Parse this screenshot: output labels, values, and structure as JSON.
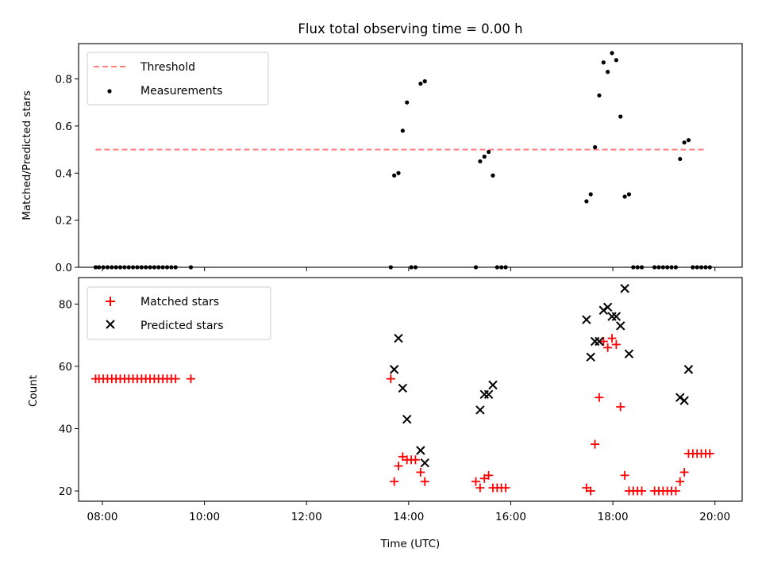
{
  "figure_title": "Flux total observing time = 0.00 h",
  "colors": {
    "threshold": "#ff7f7f",
    "measurements": "#000000",
    "matched": "#ff0000",
    "predicted": "#000000"
  },
  "chart_data": [
    {
      "type": "scatter",
      "title": "Flux total observing time = 0.00 h",
      "xlabel": "",
      "ylabel": "Matched/Predicted stars",
      "xlim": [
        "07:32",
        "20:32"
      ],
      "ylim": [
        0,
        0.95
      ],
      "x_ticks": [],
      "y_ticks": [
        "0.0",
        "0.2",
        "0.4",
        "0.6",
        "0.8"
      ],
      "y_tick_values": [
        0,
        0.2,
        0.4,
        0.6,
        0.8
      ],
      "grid": false,
      "legend_position": "top-left",
      "legend": [
        "Threshold",
        "Measurements"
      ],
      "series": [
        {
          "name": "Threshold",
          "style": "dashed-line",
          "points": [
            [
              "07:52",
              0.5
            ],
            [
              "19:50",
              0.5
            ]
          ]
        },
        {
          "name": "Measurements",
          "style": "dot",
          "points": [
            [
              "07:52",
              0.0
            ],
            [
              "07:56",
              0.0
            ],
            [
              "08:01",
              0.0
            ],
            [
              "08:06",
              0.0
            ],
            [
              "08:11",
              0.0
            ],
            [
              "08:16",
              0.0
            ],
            [
              "08:21",
              0.0
            ],
            [
              "08:26",
              0.0
            ],
            [
              "08:31",
              0.0
            ],
            [
              "08:36",
              0.0
            ],
            [
              "08:41",
              0.0
            ],
            [
              "08:46",
              0.0
            ],
            [
              "08:51",
              0.0
            ],
            [
              "08:56",
              0.0
            ],
            [
              "09:01",
              0.0
            ],
            [
              "09:06",
              0.0
            ],
            [
              "09:11",
              0.0
            ],
            [
              "09:16",
              0.0
            ],
            [
              "09:21",
              0.0
            ],
            [
              "09:26",
              0.0
            ],
            [
              "09:44",
              0.0
            ],
            [
              "13:39",
              0.0
            ],
            [
              "13:43",
              0.39
            ],
            [
              "13:48",
              0.4
            ],
            [
              "13:53",
              0.58
            ],
            [
              "13:58",
              0.7
            ],
            [
              "14:03",
              0.0
            ],
            [
              "14:08",
              0.0
            ],
            [
              "14:14",
              0.78
            ],
            [
              "14:19",
              0.79
            ],
            [
              "15:19",
              0.0
            ],
            [
              "15:24",
              0.45
            ],
            [
              "15:29",
              0.47
            ],
            [
              "15:34",
              0.49
            ],
            [
              "15:39",
              0.39
            ],
            [
              "15:44",
              0.0
            ],
            [
              "15:49",
              0.0
            ],
            [
              "15:54",
              0.0
            ],
            [
              "17:29",
              0.28
            ],
            [
              "17:34",
              0.31
            ],
            [
              "17:39",
              0.51
            ],
            [
              "17:44",
              0.73
            ],
            [
              "17:49",
              0.87
            ],
            [
              "17:54",
              0.83
            ],
            [
              "17:59",
              0.91
            ],
            [
              "18:04",
              0.88
            ],
            [
              "18:09",
              0.64
            ],
            [
              "18:14",
              0.3
            ],
            [
              "18:19",
              0.31
            ],
            [
              "18:24",
              0.0
            ],
            [
              "18:29",
              0.0
            ],
            [
              "18:34",
              0.0
            ],
            [
              "18:49",
              0.0
            ],
            [
              "18:54",
              0.0
            ],
            [
              "18:59",
              0.0
            ],
            [
              "19:04",
              0.0
            ],
            [
              "19:09",
              0.0
            ],
            [
              "19:14",
              0.0
            ],
            [
              "19:19",
              0.46
            ],
            [
              "19:24",
              0.53
            ],
            [
              "19:29",
              0.54
            ],
            [
              "19:34",
              0.0
            ],
            [
              "19:39",
              0.0
            ],
            [
              "19:44",
              0.0
            ],
            [
              "19:49",
              0.0
            ],
            [
              "19:54",
              0.0
            ]
          ]
        }
      ]
    },
    {
      "type": "scatter",
      "title": "",
      "xlabel": "Time (UTC)",
      "ylabel": "Count",
      "xlim": [
        "07:32",
        "20:32"
      ],
      "ylim": [
        16.7,
        88.5
      ],
      "x_ticks": [
        "08:00",
        "10:00",
        "12:00",
        "14:00",
        "16:00",
        "18:00",
        "20:00"
      ],
      "y_ticks": [
        "20",
        "40",
        "60",
        "80"
      ],
      "y_tick_values": [
        20,
        40,
        60,
        80
      ],
      "grid": false,
      "legend_position": "top-left",
      "legend": [
        "Matched stars",
        "Predicted stars"
      ],
      "series": [
        {
          "name": "Matched stars",
          "style": "plus",
          "points": [
            [
              "07:52",
              56
            ],
            [
              "07:56",
              56
            ],
            [
              "08:01",
              56
            ],
            [
              "08:06",
              56
            ],
            [
              "08:11",
              56
            ],
            [
              "08:16",
              56
            ],
            [
              "08:21",
              56
            ],
            [
              "08:26",
              56
            ],
            [
              "08:31",
              56
            ],
            [
              "08:36",
              56
            ],
            [
              "08:41",
              56
            ],
            [
              "08:46",
              56
            ],
            [
              "08:51",
              56
            ],
            [
              "08:56",
              56
            ],
            [
              "09:01",
              56
            ],
            [
              "09:06",
              56
            ],
            [
              "09:11",
              56
            ],
            [
              "09:16",
              56
            ],
            [
              "09:21",
              56
            ],
            [
              "09:26",
              56
            ],
            [
              "09:44",
              56
            ],
            [
              "13:39",
              56
            ],
            [
              "13:43",
              23
            ],
            [
              "13:48",
              28
            ],
            [
              "13:53",
              31
            ],
            [
              "13:58",
              30
            ],
            [
              "14:03",
              30
            ],
            [
              "14:08",
              30
            ],
            [
              "14:14",
              26
            ],
            [
              "14:19",
              23
            ],
            [
              "15:19",
              23
            ],
            [
              "15:24",
              21
            ],
            [
              "15:29",
              24
            ],
            [
              "15:34",
              25
            ],
            [
              "15:39",
              21
            ],
            [
              "15:44",
              21
            ],
            [
              "15:49",
              21
            ],
            [
              "15:54",
              21
            ],
            [
              "17:29",
              21
            ],
            [
              "17:34",
              20
            ],
            [
              "17:39",
              35
            ],
            [
              "17:44",
              50
            ],
            [
              "17:49",
              68
            ],
            [
              "17:54",
              66
            ],
            [
              "17:59",
              69
            ],
            [
              "18:04",
              67
            ],
            [
              "18:09",
              47
            ],
            [
              "18:14",
              25
            ],
            [
              "18:19",
              20
            ],
            [
              "18:24",
              20
            ],
            [
              "18:29",
              20
            ],
            [
              "18:34",
              20
            ],
            [
              "18:49",
              20
            ],
            [
              "18:54",
              20
            ],
            [
              "18:59",
              20
            ],
            [
              "19:04",
              20
            ],
            [
              "19:09",
              20
            ],
            [
              "19:14",
              20
            ],
            [
              "19:19",
              23
            ],
            [
              "19:24",
              26
            ],
            [
              "19:29",
              32
            ],
            [
              "19:34",
              32
            ],
            [
              "19:39",
              32
            ],
            [
              "19:44",
              32
            ],
            [
              "19:49",
              32
            ],
            [
              "19:54",
              32
            ]
          ]
        },
        {
          "name": "Predicted stars",
          "style": "x",
          "points": [
            [
              "13:43",
              59
            ],
            [
              "13:48",
              69
            ],
            [
              "13:53",
              53
            ],
            [
              "13:58",
              43
            ],
            [
              "14:14",
              33
            ],
            [
              "14:19",
              29
            ],
            [
              "15:24",
              46
            ],
            [
              "15:29",
              51
            ],
            [
              "15:34",
              51
            ],
            [
              "15:39",
              54
            ],
            [
              "17:29",
              75
            ],
            [
              "17:34",
              63
            ],
            [
              "17:39",
              68
            ],
            [
              "17:44",
              68
            ],
            [
              "17:49",
              78
            ],
            [
              "17:54",
              79
            ],
            [
              "17:59",
              76
            ],
            [
              "18:04",
              76
            ],
            [
              "18:09",
              73
            ],
            [
              "18:14",
              85
            ],
            [
              "18:19",
              64
            ],
            [
              "19:19",
              50
            ],
            [
              "19:24",
              49
            ],
            [
              "19:29",
              59
            ]
          ]
        }
      ]
    }
  ]
}
